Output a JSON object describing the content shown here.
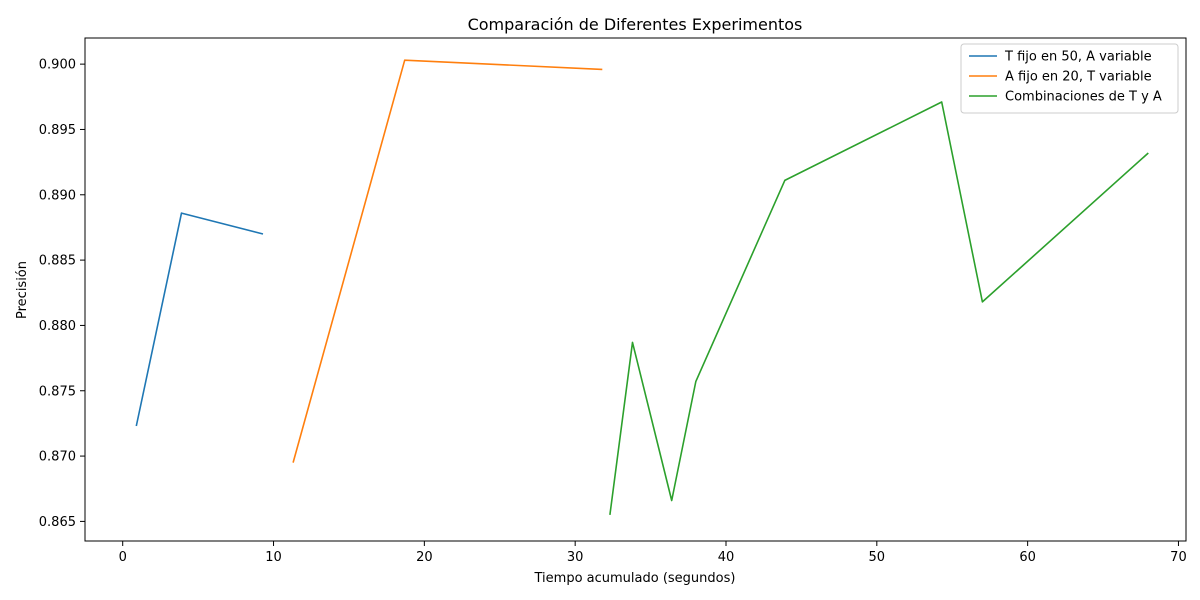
{
  "chart_data": {
    "type": "line",
    "title": "Comparación de Diferentes Experimentos",
    "xlabel": "Tiempo acumulado (segundos)",
    "ylabel": "Precisión",
    "xlim": [
      -2.5,
      70.5
    ],
    "ylim": [
      0.8635,
      0.902
    ],
    "xticks": [
      0,
      10,
      20,
      30,
      40,
      50,
      60,
      70
    ],
    "xtick_labels": [
      "0",
      "10",
      "20",
      "30",
      "40",
      "50",
      "60",
      "70"
    ],
    "yticks": [
      0.865,
      0.87,
      0.875,
      0.88,
      0.885,
      0.89,
      0.895,
      0.9
    ],
    "ytick_labels": [
      "0.865",
      "0.870",
      "0.875",
      "0.880",
      "0.885",
      "0.890",
      "0.895",
      "0.900"
    ],
    "grid": false,
    "legend_position": "top-right",
    "series": [
      {
        "name": "T fijo en 50, A variable",
        "color": "#1f77b4",
        "x": [
          0.9,
          3.9,
          9.3
        ],
        "y": [
          0.8723,
          0.8886,
          0.887
        ]
      },
      {
        "name": "A fijo en 20, T variable",
        "color": "#ff7f0e",
        "x": [
          11.3,
          18.7,
          31.8
        ],
        "y": [
          0.8695,
          0.9003,
          0.8996
        ]
      },
      {
        "name": "Combinaciones de T y A",
        "color": "#2ca02c",
        "x": [
          32.3,
          33.8,
          36.4,
          38.0,
          43.9,
          54.3,
          57.0,
          68.0
        ],
        "y": [
          0.8655,
          0.8787,
          0.8666,
          0.8757,
          0.8911,
          0.8971,
          0.8818,
          0.8932
        ]
      }
    ]
  }
}
